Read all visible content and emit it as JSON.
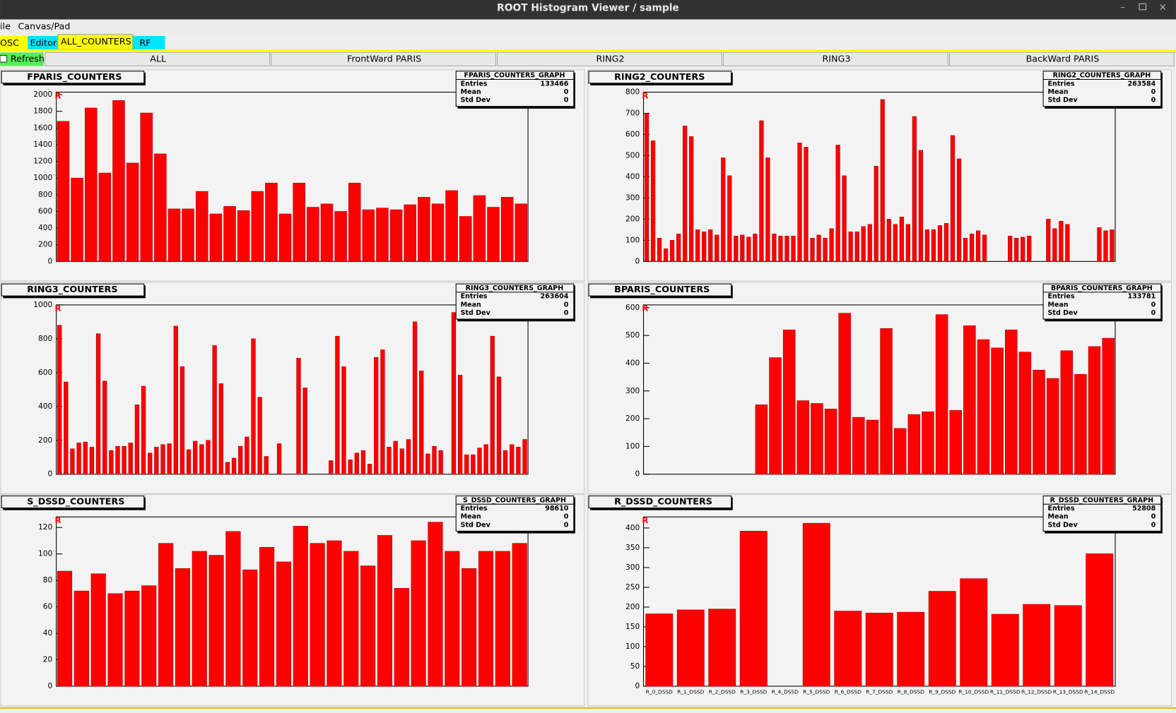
{
  "window": {
    "title": "ROOT Histogram Viewer / sample"
  },
  "menu": [
    "ile",
    "Canvas/Pad"
  ],
  "tabs": [
    "OSC",
    "Editor",
    "ALL_COUNTERS",
    "RF"
  ],
  "refresh": "Refresh",
  "buttons": [
    "ALL",
    "FrontWard PARIS",
    "RING2",
    "RING3",
    "BackWard PARIS"
  ],
  "chart_data": [
    {
      "type": "bar",
      "title": "FPARIS_COUNTERS",
      "corner_label": "R",
      "color": "#ff0000",
      "ylim": [
        0,
        2030
      ],
      "yticks": [
        0,
        200,
        400,
        600,
        800,
        1000,
        1200,
        1400,
        1600,
        1800,
        2000
      ],
      "values": [
        1680,
        1000,
        1840,
        1060,
        1930,
        1180,
        1780,
        1290,
        630,
        630,
        840,
        570,
        660,
        610,
        840,
        940,
        570,
        940,
        650,
        690,
        600,
        940,
        620,
        640,
        620,
        680,
        770,
        690,
        850,
        540,
        790,
        650,
        770,
        690
      ],
      "stats": {
        "title": "FPARIS_COUNTERS_GRAPH",
        "rows": [
          [
            "Entries",
            133466
          ],
          [
            "Mean",
            0
          ],
          [
            "Std Dev",
            0
          ]
        ]
      }
    },
    {
      "type": "bar",
      "title": "RING2_COUNTERS",
      "corner_label": "R",
      "color": "#ff0000",
      "ylim": [
        0,
        800
      ],
      "yticks": [
        0,
        100,
        200,
        300,
        400,
        500,
        600,
        700,
        800
      ],
      "values": [
        700,
        570,
        110,
        60,
        100,
        130,
        640,
        590,
        150,
        140,
        150,
        125,
        490,
        405,
        120,
        125,
        115,
        130,
        665,
        490,
        130,
        120,
        120,
        120,
        560,
        540,
        110,
        125,
        110,
        155,
        550,
        405,
        140,
        140,
        165,
        175,
        450,
        765,
        200,
        175,
        210,
        175,
        685,
        525,
        150,
        150,
        170,
        180,
        595,
        485,
        110,
        130,
        145,
        125,
        0,
        0,
        0,
        120,
        110,
        115,
        120,
        0,
        0,
        200,
        155,
        190,
        175,
        0,
        0,
        0,
        0,
        160,
        145,
        150
      ],
      "stats": {
        "title": "RING2_COUNTERS_GRAPH",
        "rows": [
          [
            "Entries",
            263584
          ],
          [
            "Mean",
            0
          ],
          [
            "Std Dev",
            0
          ]
        ]
      }
    },
    {
      "type": "bar",
      "title": "RING3_COUNTERS",
      "corner_label": "R",
      "color": "#ff0000",
      "ylim": [
        0,
        1000
      ],
      "yticks": [
        0,
        200,
        400,
        600,
        800,
        1000
      ],
      "values": [
        880,
        545,
        150,
        185,
        190,
        160,
        830,
        550,
        140,
        165,
        165,
        185,
        410,
        520,
        125,
        160,
        175,
        180,
        875,
        635,
        145,
        195,
        175,
        200,
        760,
        535,
        70,
        95,
        165,
        220,
        800,
        455,
        105,
        0,
        180,
        0,
        0,
        685,
        510,
        0,
        0,
        0,
        80,
        815,
        635,
        85,
        125,
        140,
        60,
        690,
        735,
        160,
        195,
        150,
        205,
        900,
        610,
        120,
        165,
        140,
        0,
        955,
        585,
        115,
        115,
        155,
        175,
        815,
        575,
        140,
        175,
        160,
        205
      ],
      "stats": {
        "title": "RING3_COUNTERS_GRAPH",
        "rows": [
          [
            "Entries",
            263604
          ],
          [
            "Mean",
            0
          ],
          [
            "Std Dev",
            0
          ]
        ]
      }
    },
    {
      "type": "bar",
      "title": "BPARIS_COUNTERS",
      "corner_label": "R",
      "color": "#ff0000",
      "ylim": [
        0,
        610
      ],
      "yticks": [
        0,
        100,
        200,
        300,
        400,
        500,
        600
      ],
      "values": [
        0,
        0,
        0,
        0,
        0,
        0,
        0,
        0,
        250,
        420,
        520,
        265,
        255,
        235,
        580,
        205,
        195,
        525,
        165,
        215,
        225,
        575,
        230,
        535,
        485,
        455,
        520,
        440,
        375,
        345,
        445,
        360,
        460,
        490
      ],
      "stats": {
        "title": "BPARIS_COUNTERS_GRAPH",
        "rows": [
          [
            "Entries",
            133781
          ],
          [
            "Mean",
            0
          ],
          [
            "Std Dev",
            0
          ]
        ]
      }
    },
    {
      "type": "bar",
      "title": "S_DSSD_COUNTERS",
      "corner_label": "R",
      "color": "#ff0000",
      "ylim": [
        0,
        128
      ],
      "yticks": [
        0,
        20,
        40,
        60,
        80,
        100,
        120
      ],
      "values": [
        87,
        72,
        85,
        70,
        72,
        76,
        108,
        89,
        102,
        99,
        117,
        88,
        105,
        94,
        121,
        108,
        110,
        102,
        91,
        114,
        74,
        110,
        124,
        102,
        89,
        102,
        102,
        108
      ],
      "stats": {
        "title": "S_DSSD_COUNTERS_GRAPH",
        "rows": [
          [
            "Entries",
            98610
          ],
          [
            "Mean",
            0
          ],
          [
            "Std Dev",
            0
          ]
        ]
      }
    },
    {
      "type": "bar",
      "title": "R_DSSD_COUNTERS",
      "corner_label": "R",
      "color": "#ff0000",
      "ylim": [
        0,
        428
      ],
      "yticks": [
        0,
        50,
        100,
        150,
        200,
        250,
        300,
        350,
        400
      ],
      "categories": [
        "R_0_DSSD",
        "R_1_DSSD",
        "R_2_DSSD",
        "R_3_DSSD",
        "R_4_DSSD",
        "R_5_DSSD",
        "R_6_DSSD",
        "R_7_DSSD",
        "R_8_DSSD",
        "R_9_DSSD",
        "R_10_DSSD",
        "R_11_DSSD",
        "R_12_DSSD",
        "R_13_DSSD",
        "R_14_DSSD"
      ],
      "values": [
        183,
        193,
        195,
        392,
        0,
        412,
        190,
        185,
        187,
        240,
        272,
        182,
        207,
        204,
        335
      ],
      "stats": {
        "title": "R_DSSD_COUNTERS_GRAPH",
        "rows": [
          [
            "Entries",
            52808
          ],
          [
            "Mean",
            0
          ],
          [
            "Std Dev",
            0
          ]
        ]
      }
    }
  ]
}
